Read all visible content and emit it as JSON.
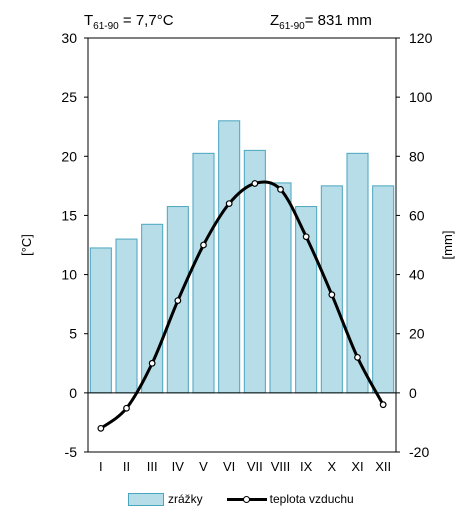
{
  "header": {
    "temp_symbol": "T",
    "temp_period": "61-90",
    "temp_value": " = 7,7°C",
    "precip_symbol": "Z",
    "precip_period": "61-90",
    "precip_value": "= 831 mm"
  },
  "chart_data": {
    "type": "bar",
    "categories": [
      "I",
      "II",
      "III",
      "IV",
      "V",
      "VI",
      "VII",
      "VIII",
      "IX",
      "X",
      "XI",
      "XII"
    ],
    "series": [
      {
        "name": "zrážky",
        "type": "bar",
        "axis": "right",
        "values": [
          49,
          52,
          57,
          63,
          81,
          92,
          82,
          71,
          63,
          70,
          81,
          70
        ]
      },
      {
        "name": "teplota vzduchu",
        "type": "line",
        "axis": "left",
        "values": [
          -3.0,
          -1.3,
          2.5,
          7.8,
          12.5,
          16.0,
          17.7,
          17.2,
          13.2,
          8.3,
          3.0,
          -1.0
        ]
      }
    ],
    "ylabel_left": "[°C]",
    "ylabel_right": "[mm]",
    "ylim_left": [
      -5,
      30
    ],
    "ylim_right": [
      -20,
      120
    ],
    "yticks_left": [
      -5,
      0,
      5,
      10,
      15,
      20,
      25,
      30
    ],
    "yticks_right": [
      -20,
      0,
      20,
      40,
      60,
      80,
      100,
      120
    ],
    "grid": false,
    "legend_position": "bottom"
  },
  "colors": {
    "bar_fill": "#b7dde8",
    "bar_stroke": "#4aa6bf",
    "line": "#000000",
    "marker_fill": "#ffffff"
  }
}
